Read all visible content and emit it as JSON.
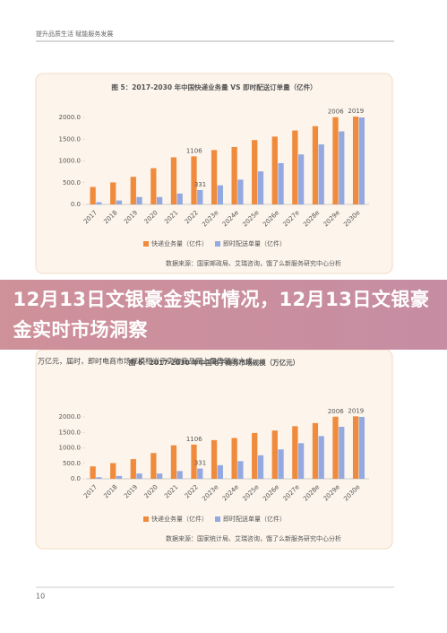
{
  "header": "提升品质生活 赋能服务发展",
  "chart_data": [
    {
      "type": "bar",
      "title": "图 5：2017-2030 年中国快递业务量 VS 即时配送订单量（亿件）",
      "categories": [
        "2017",
        "2018",
        "2019",
        "2020",
        "2021",
        "2022",
        "2023e",
        "2024e",
        "2025e",
        "2026e",
        "2027e",
        "2028e",
        "2029e",
        "2030e"
      ],
      "series": [
        {
          "name": "快递业务量（亿件）",
          "color": "#f08a3c",
          "values": [
            401,
            507,
            635,
            833,
            1083,
            1106,
            1250,
            1320,
            1480,
            1560,
            1700,
            1800,
            2006,
            2019
          ],
          "value_labels": [
            null,
            null,
            null,
            null,
            null,
            "1106",
            null,
            null,
            null,
            null,
            null,
            null,
            "2006",
            "2019"
          ]
        },
        {
          "name": "即时配送单量（亿件）",
          "color": "#93a9e0",
          "values": [
            50,
            90,
            170,
            170,
            250,
            331,
            440,
            570,
            760,
            950,
            1150,
            1380,
            1680,
            2000
          ],
          "value_labels": [
            null,
            null,
            null,
            null,
            null,
            "331",
            null,
            null,
            null,
            null,
            null,
            null,
            null,
            null
          ]
        }
      ],
      "ylim": [
        0,
        2000
      ],
      "yticks": [
        {
          "value": 0,
          "label": "0.0"
        },
        {
          "value": 500,
          "label": "500.0"
        },
        {
          "value": 1000,
          "label": "1000.0"
        },
        {
          "value": 1500,
          "label": "1500.0"
        },
        {
          "value": 2000,
          "label": "2000.0"
        }
      ],
      "source": "数据来源：国家邮政局、艾瑞咨询，饿了么新服务研究中心分析"
    },
    {
      "type": "bar",
      "title": "图 6：2017-2030 年中国电子商务市场规模（万亿元）",
      "categories": [
        "2017",
        "2018",
        "2019",
        "2020",
        "2021",
        "2022",
        "2023e",
        "2024e",
        "2025e",
        "2026e",
        "2027e",
        "2028e",
        "2029e",
        "2030e"
      ],
      "series": [
        {
          "name": "快递业务量（亿件）",
          "color": "#f08a3c",
          "values": [
            401,
            507,
            635,
            833,
            1083,
            1106,
            1250,
            1320,
            1480,
            1560,
            1700,
            1800,
            2006,
            2019
          ],
          "value_labels": [
            null,
            null,
            null,
            null,
            null,
            "1106",
            null,
            null,
            null,
            null,
            null,
            null,
            "2006",
            "2019"
          ]
        },
        {
          "name": "即时配送单量（亿件）",
          "color": "#93a9e0",
          "values": [
            50,
            90,
            170,
            170,
            250,
            331,
            440,
            570,
            760,
            950,
            1150,
            1380,
            1680,
            2000
          ],
          "value_labels": [
            null,
            null,
            null,
            null,
            null,
            "331",
            null,
            null,
            null,
            null,
            null,
            null,
            null,
            null
          ]
        }
      ],
      "ylim": [
        0,
        2000
      ],
      "yticks": [
        {
          "value": 0,
          "label": "0.0"
        },
        {
          "value": 500,
          "label": "500.0"
        },
        {
          "value": 1000,
          "label": "1000.0"
        },
        {
          "value": 1500,
          "label": "1500.0"
        },
        {
          "value": 2000,
          "label": "2000.0"
        }
      ],
      "source": "数据来源：国家统计局、艾瑞咨询，饿了么新服务研究中心分析"
    }
  ],
  "body_text": "万亿元，届时，即时电商市场规模相当于实物商品网上零售额的六成。",
  "overlay_title": "12月13日文银豪金实时情况，12月13日文银豪金实时市场洞察",
  "page_number": "10"
}
